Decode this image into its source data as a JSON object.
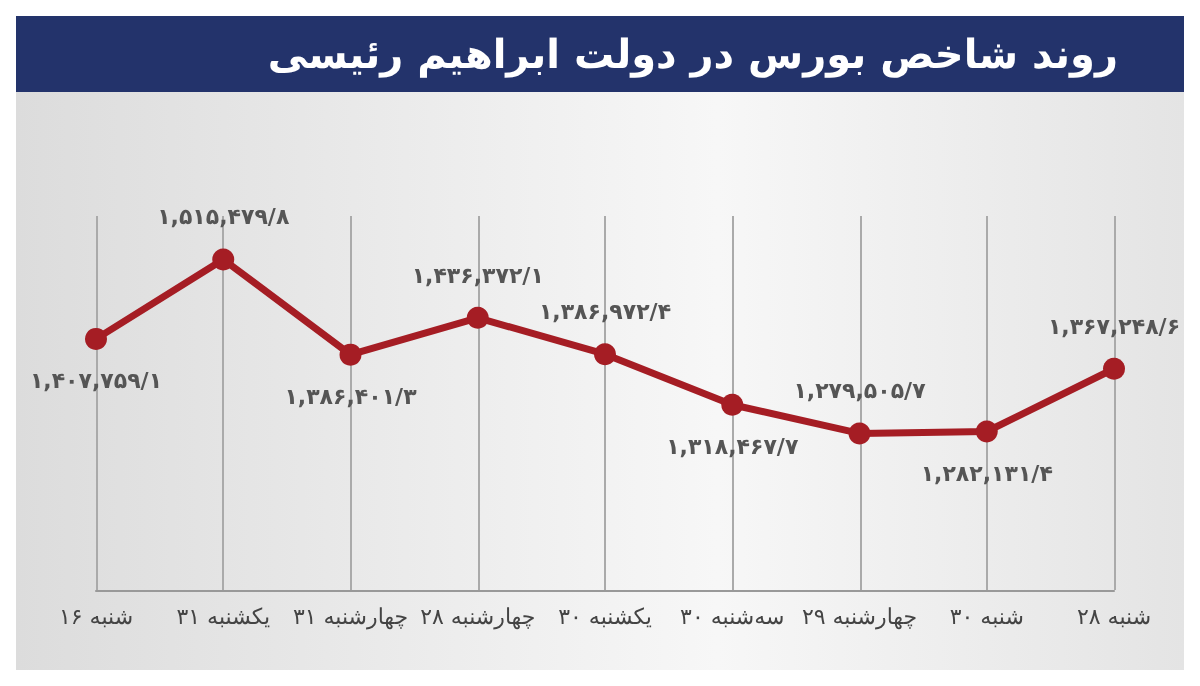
{
  "chart_data": {
    "type": "line",
    "title": "روند شاخص بورس در دولت ابراهیم رئیسی",
    "categories": [
      "شنبه ۱۶",
      "یکشنبه ۳۱",
      "چهارشنبه ۳۱",
      "چهارشنبه ۲۸",
      "یکشنبه ۳۰",
      "سه‌شنبه ۳۰",
      "چهارشنبه ۲۹",
      "شنبه ۳۰",
      "شنبه ۲۸"
    ],
    "series": [
      {
        "color": "#a51d24",
        "values": [
          1407759.1,
          1515479.8,
          1386401.3,
          1436372.1,
          1386972.4,
          1318467.7,
          1279505.7,
          1282131.4,
          1367248.6
        ],
        "value_labels": [
          "۱,۴۰۷,۷۵۹/۱",
          "۱,۵۱۵,۴۷۹/۸",
          "۱,۳۸۶,۴۰۱/۳",
          "۱,۴۳۶,۳۷۲/۱",
          "۱,۳۸۶,۹۷۲/۴",
          "۱,۳۱۸,۴۶۷/۷",
          "۱,۲۷۹,۵۰۵/۷",
          "۱,۲۸۲,۱۳۱/۴",
          "۱,۳۶۷,۲۴۸/۶"
        ]
      }
    ],
    "marker": "circle",
    "line_style": "solid",
    "grid": "x"
  }
}
